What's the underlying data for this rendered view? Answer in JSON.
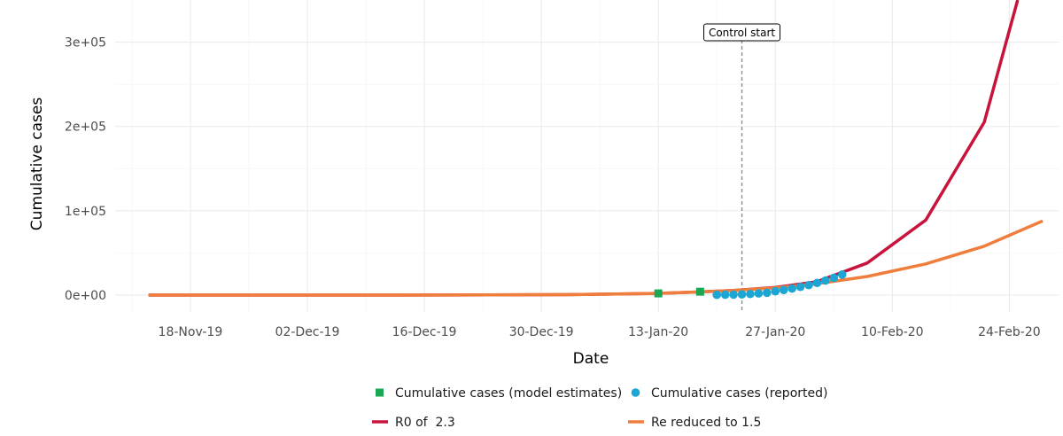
{
  "chart_data": {
    "type": "line",
    "title": "",
    "xlabel": "Date",
    "ylabel": "Cumulative cases",
    "x_type": "date",
    "x_range": [
      "2019-11-09",
      "2020-03-01"
    ],
    "ylim": [
      -20000,
      350000
    ],
    "x_ticks": [
      {
        "date": "2019-11-18",
        "label": "18-Nov-19"
      },
      {
        "date": "2019-12-02",
        "label": "02-Dec-19"
      },
      {
        "date": "2019-12-16",
        "label": "16-Dec-19"
      },
      {
        "date": "2019-12-30",
        "label": "30-Dec-19"
      },
      {
        "date": "2020-01-13",
        "label": "13-Jan-20"
      },
      {
        "date": "2020-01-27",
        "label": "27-Jan-20"
      },
      {
        "date": "2020-02-10",
        "label": "10-Feb-20"
      },
      {
        "date": "2020-02-24",
        "label": "24-Feb-20"
      }
    ],
    "y_ticks": [
      {
        "value": 0,
        "label": "0e+00"
      },
      {
        "value": 100000,
        "label": "1e+05"
      },
      {
        "value": 200000,
        "label": "2e+05"
      },
      {
        "value": 300000,
        "label": "3e+05"
      }
    ],
    "grid": true,
    "annotation": {
      "date": "2020-01-23",
      "label": "Control start"
    },
    "series": [
      {
        "name": "R0 of  2.3",
        "kind": "line",
        "color": "#c8143c",
        "points": [
          {
            "x": "2019-11-13",
            "y": 0
          },
          {
            "x": "2019-12-13",
            "y": 0
          },
          {
            "x": "2020-01-02",
            "y": 500
          },
          {
            "x": "2020-01-12",
            "y": 1800
          },
          {
            "x": "2020-01-17",
            "y": 3300
          },
          {
            "x": "2020-01-22",
            "y": 5500
          },
          {
            "x": "2020-01-27",
            "y": 9000
          },
          {
            "x": "2020-02-01",
            "y": 16000
          },
          {
            "x": "2020-02-07",
            "y": 38000
          },
          {
            "x": "2020-02-14",
            "y": 89000
          },
          {
            "x": "2020-02-21",
            "y": 205000
          },
          {
            "x": "2020-02-25",
            "y": 350000
          }
        ]
      },
      {
        "name": "Re reduced to 1.5",
        "kind": "line",
        "color": "#ef7d3c",
        "points": [
          {
            "x": "2019-11-13",
            "y": 0
          },
          {
            "x": "2019-12-13",
            "y": 0
          },
          {
            "x": "2020-01-02",
            "y": 500
          },
          {
            "x": "2020-01-12",
            "y": 1800
          },
          {
            "x": "2020-01-17",
            "y": 3300
          },
          {
            "x": "2020-01-22",
            "y": 5500
          },
          {
            "x": "2020-01-27",
            "y": 8500
          },
          {
            "x": "2020-02-01",
            "y": 13500
          },
          {
            "x": "2020-02-07",
            "y": 22000
          },
          {
            "x": "2020-02-14",
            "y": 37000
          },
          {
            "x": "2020-02-21",
            "y": 58000
          },
          {
            "x": "2020-02-28",
            "y": 88000
          }
        ]
      },
      {
        "name": "Cumulative cases (model estimates)",
        "kind": "square",
        "color": "#1aa854",
        "points": [
          {
            "x": "2020-01-13",
            "y": 2000
          },
          {
            "x": "2020-01-18",
            "y": 4000
          }
        ]
      },
      {
        "name": "Cumulative cases (reported)",
        "kind": "circle",
        "color": "#1ba6d4",
        "points": [
          {
            "x": "2020-01-20",
            "y": 291
          },
          {
            "x": "2020-01-21",
            "y": 440
          },
          {
            "x": "2020-01-22",
            "y": 571
          },
          {
            "x": "2020-01-23",
            "y": 830
          },
          {
            "x": "2020-01-24",
            "y": 1287
          },
          {
            "x": "2020-01-25",
            "y": 1975
          },
          {
            "x": "2020-01-26",
            "y": 2744
          },
          {
            "x": "2020-01-27",
            "y": 4515
          },
          {
            "x": "2020-01-28",
            "y": 5974
          },
          {
            "x": "2020-01-29",
            "y": 7711
          },
          {
            "x": "2020-01-30",
            "y": 9692
          },
          {
            "x": "2020-01-31",
            "y": 11791
          },
          {
            "x": "2020-02-01",
            "y": 14380
          },
          {
            "x": "2020-02-02",
            "y": 17205
          },
          {
            "x": "2020-02-03",
            "y": 20438
          },
          {
            "x": "2020-02-04",
            "y": 24324
          }
        ]
      }
    ],
    "legend": {
      "position": "bottom",
      "items": [
        {
          "label": "Cumulative cases (model estimates)",
          "kind": "square",
          "color": "#1aa854"
        },
        {
          "label": "Cumulative cases (reported)",
          "kind": "circle",
          "color": "#1ba6d4"
        },
        {
          "label": "R0 of  2.3",
          "kind": "line",
          "color": "#c8143c"
        },
        {
          "label": "Re reduced to 1.5",
          "kind": "line",
          "color": "#ef7d3c"
        }
      ]
    }
  }
}
